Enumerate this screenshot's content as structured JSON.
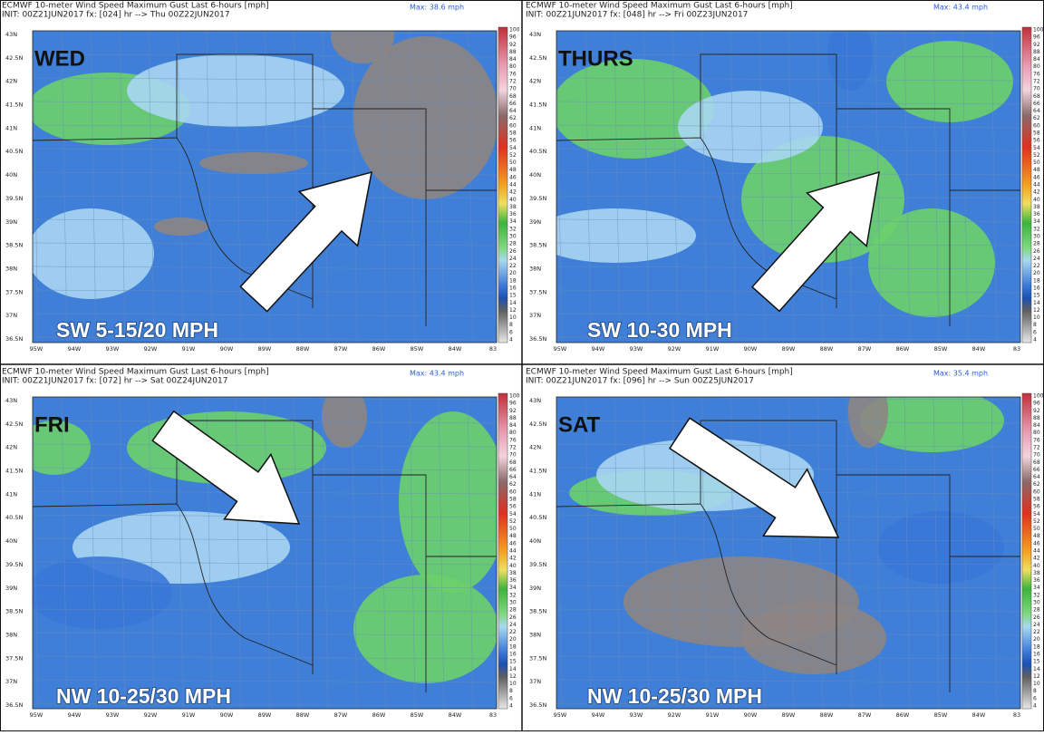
{
  "panels": [
    {
      "header": "ECMWF 10-meter Wind Speed Maximum Gust Last 6-hours [mph]",
      "init": "INIT: 00Z21JUN2017 fx: [024] hr --> Thu 00Z22JUN2017",
      "max": "Max: 38.6 mph",
      "day": "WED",
      "summary": "SW 5-15/20 MPH"
    },
    {
      "header": "ECMWF 10-meter Wind Speed Maximum Gust Last 6-hours [mph]",
      "init": "INIT: 00Z21JUN2017 fx: [048] hr --> Fri 00Z23JUN2017",
      "max": "Max: 43.4 mph",
      "day": "THURS",
      "summary": "SW 10-30 MPH"
    },
    {
      "header": "ECMWF 10-meter Wind Speed Maximum Gust Last 6-hours [mph]",
      "init": "INIT: 00Z21JUN2017 fx: [072] hr --> Sat 00Z24JUN2017",
      "max": "Max: 43.4 mph",
      "day": "FRI",
      "summary": "NW 10-25/30 MPH"
    },
    {
      "header": "ECMWF 10-meter Wind Speed Maximum Gust Last 6-hours [mph]",
      "init": "INIT: 00Z21JUN2017 fx: [096] hr --> Sun 00Z25JUN2017",
      "max": "Max: 35.4 mph",
      "day": "SAT",
      "summary": "NW 10-25/30 MPH"
    }
  ],
  "lat_labels": [
    "43N",
    "42.5N",
    "42N",
    "41.5N",
    "41N",
    "40.5N",
    "40N",
    "39.5N",
    "39N",
    "38.5N",
    "38N",
    "37.5N",
    "37N",
    "36.5N"
  ],
  "lon_labels": [
    "95W",
    "94W",
    "93W",
    "92W",
    "91W",
    "90W",
    "89W",
    "88W",
    "87W",
    "86W",
    "85W",
    "84W",
    "83"
  ],
  "colorbar_labels": [
    "100",
    "96",
    "92",
    "88",
    "84",
    "80",
    "76",
    "72",
    "70",
    "68",
    "66",
    "64",
    "62",
    "60",
    "58",
    "56",
    "54",
    "52",
    "50",
    "48",
    "46",
    "44",
    "42",
    "40",
    "38",
    "36",
    "34",
    "32",
    "30",
    "28",
    "26",
    "24",
    "22",
    "20",
    "18",
    "16",
    "15",
    "14",
    "12",
    "10",
    "8",
    "6",
    "4"
  ]
}
